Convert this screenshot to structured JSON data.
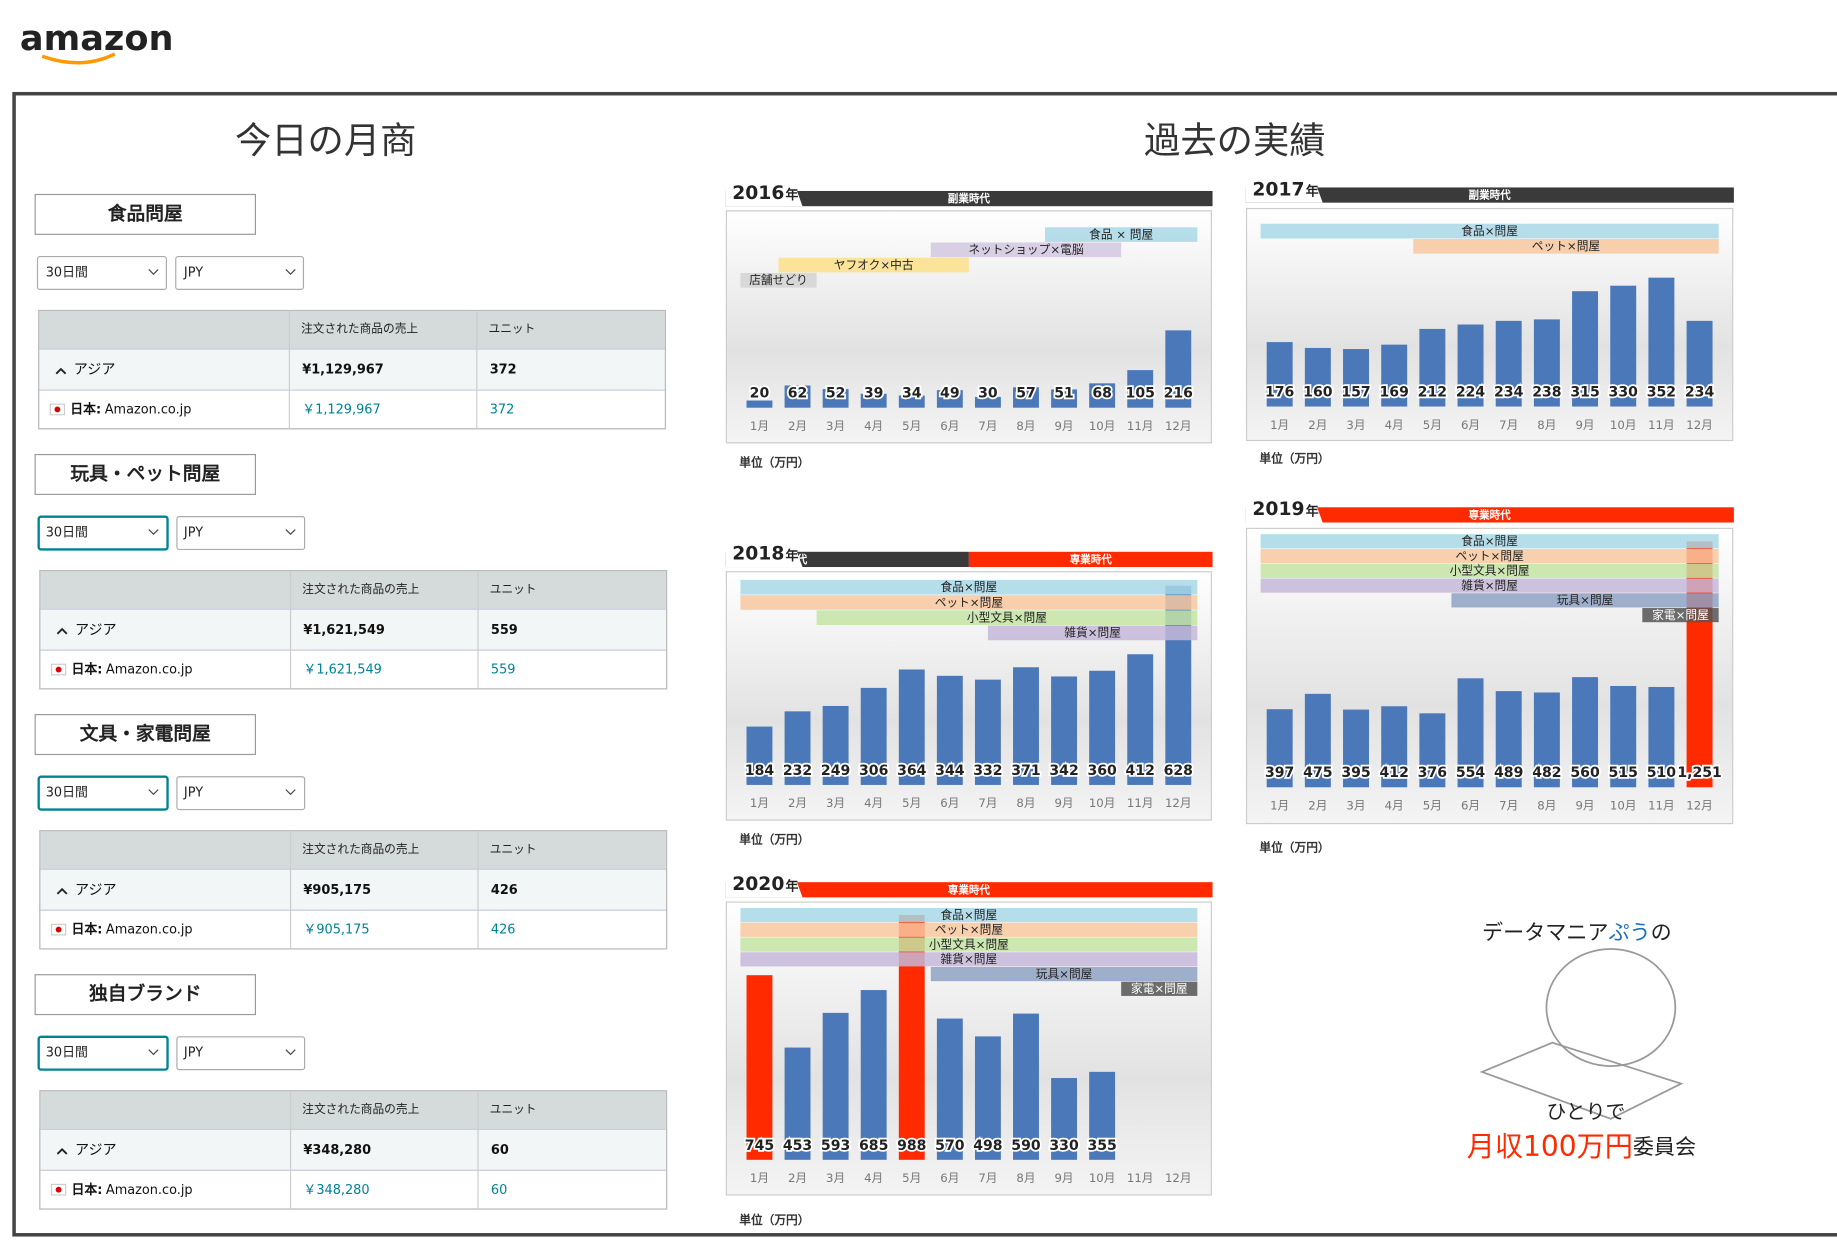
{
  "header": {
    "logo": "amazon"
  },
  "today": {
    "title": "今日の月商",
    "sections": [
      {
        "name": "食品問屋",
        "period": "30日間",
        "currency": "JPY",
        "columns": [
          "注文された商品の売上",
          "ユニット"
        ],
        "region": "アジア",
        "region_sales": "¥1,129,967",
        "region_units": 372,
        "country": "日本:",
        "store": "Amazon.co.jp",
        "country_sales": "￥1,129,967",
        "country_units": 372
      },
      {
        "name": "玩具・ペット問屋",
        "period": "30日間",
        "currency": "JPY",
        "columns": [
          "注文された商品の売上",
          "ユニット"
        ],
        "region": "アジア",
        "region_sales": "¥1,621,549",
        "region_units": 559,
        "country": "日本:",
        "store": "Amazon.co.jp",
        "country_sales": "￥1,621,549",
        "country_units": 559
      },
      {
        "name": "文具・家電問屋",
        "period": "30日間",
        "currency": "JPY",
        "columns": [
          "注文された商品の売上",
          "ユニット"
        ],
        "region": "アジア",
        "region_sales": "¥905,175",
        "region_units": 426,
        "country": "日本:",
        "store": "Amazon.co.jp",
        "country_sales": "￥905,175",
        "country_units": 426
      },
      {
        "name": "独自ブランド",
        "period": "30日間",
        "currency": "JPY",
        "columns": [
          "注文された商品の売上",
          "ユニット"
        ],
        "region": "アジア",
        "region_sales": "¥348,280",
        "region_units": 60,
        "country": "日本:",
        "store": "Amazon.co.jp",
        "country_sales": "￥348,280",
        "country_units": 60
      }
    ]
  },
  "history_title": "過去の実績",
  "chart_data": [
    {
      "type": "bar",
      "title": "2016",
      "title_suffix": "年",
      "eras": [
        {
          "text": "副業時代",
          "color": "#3a3a3a"
        }
      ],
      "categories": [
        "1月",
        "2月",
        "3月",
        "4月",
        "5月",
        "6月",
        "7月",
        "8月",
        "9月",
        "10月",
        "11月",
        "12月"
      ],
      "values": [
        20,
        62,
        52,
        39,
        34,
        49,
        30,
        57,
        51,
        68,
        105,
        216
      ],
      "colors": [
        "#4a78b8",
        "#4a78b8",
        "#4a78b8",
        "#4a78b8",
        "#4a78b8",
        "#4a78b8",
        "#4a78b8",
        "#4a78b8",
        "#4a78b8",
        "#4a78b8",
        "#4a78b8",
        "#4a78b8"
      ],
      "annotations": [
        {
          "text": "食品 × 問屋",
          "color": "#a8d8e6",
          "start": 9,
          "end": 12
        },
        {
          "text": "ネットショップ×電脳",
          "color": "#d2c8e0",
          "start": 6,
          "end": 10
        },
        {
          "text": "ヤフオク×中古",
          "color": "#fbe08a",
          "start": 2,
          "end": 6
        },
        {
          "text": "店舗せどり",
          "color": "#d4d4d4",
          "start": 1,
          "end": 2
        }
      ],
      "unit": "単位（万円）"
    },
    {
      "type": "bar",
      "title": "2017",
      "title_suffix": "年",
      "eras": [
        {
          "text": "副業時代",
          "color": "#3a3a3a"
        }
      ],
      "categories": [
        "1月",
        "2月",
        "3月",
        "4月",
        "5月",
        "6月",
        "7月",
        "8月",
        "9月",
        "10月",
        "11月",
        "12月"
      ],
      "values": [
        176,
        160,
        157,
        169,
        212,
        224,
        234,
        238,
        315,
        330,
        352,
        234
      ],
      "colors": [
        "#4a78b8",
        "#4a78b8",
        "#4a78b8",
        "#4a78b8",
        "#4a78b8",
        "#4a78b8",
        "#4a78b8",
        "#4a78b8",
        "#4a78b8",
        "#4a78b8",
        "#4a78b8",
        "#4a78b8"
      ],
      "annotations": [
        {
          "text": "食品×問屋",
          "color": "#a8d8e6",
          "start": 1,
          "end": 12
        },
        {
          "text": "ペット×問屋",
          "color": "#f8c8a0",
          "start": 5,
          "end": 12
        }
      ],
      "unit": "単位（万円）"
    },
    {
      "type": "bar",
      "title": "2018",
      "title_suffix": "年",
      "eras": [
        {
          "text": "副業時代",
          "color": "#3a3a3a"
        },
        {
          "text": "専業時代",
          "color": "#ff2a00"
        }
      ],
      "categories": [
        "1月",
        "2月",
        "3月",
        "4月",
        "5月",
        "6月",
        "7月",
        "8月",
        "9月",
        "10月",
        "11月",
        "12月"
      ],
      "values": [
        184,
        232,
        249,
        306,
        364,
        344,
        332,
        371,
        342,
        360,
        412,
        628
      ],
      "colors": [
        "#4a78b8",
        "#4a78b8",
        "#4a78b8",
        "#4a78b8",
        "#4a78b8",
        "#4a78b8",
        "#4a78b8",
        "#4a78b8",
        "#4a78b8",
        "#4a78b8",
        "#4a78b8",
        "#4a78b8"
      ],
      "annotations": [
        {
          "text": "食品×問屋",
          "color": "#a8d8e6",
          "start": 1,
          "end": 12
        },
        {
          "text": "ペット×問屋",
          "color": "#f8c8a0",
          "start": 1,
          "end": 12
        },
        {
          "text": "小型文具×問屋",
          "color": "#c5e4a5",
          "start": 3,
          "end": 12
        },
        {
          "text": "雑貨×問屋",
          "color": "#c6b8d8",
          "start": 7.5,
          "end": 12
        }
      ],
      "unit": "単位（万円）"
    },
    {
      "type": "bar",
      "title": "2019",
      "title_suffix": "年",
      "eras": [
        {
          "text": "専業時代",
          "color": "#ff2a00"
        }
      ],
      "categories": [
        "1月",
        "2月",
        "3月",
        "4月",
        "5月",
        "6月",
        "7月",
        "8月",
        "9月",
        "10月",
        "11月",
        "12月"
      ],
      "values": [
        397,
        475,
        395,
        412,
        376,
        554,
        489,
        482,
        560,
        515,
        510,
        1251
      ],
      "value_labels": [
        "397",
        "475",
        "395",
        "412",
        "376",
        "554",
        "489",
        "482",
        "560",
        "515",
        "510",
        "1,251"
      ],
      "colors": [
        "#4a78b8",
        "#4a78b8",
        "#4a78b8",
        "#4a78b8",
        "#4a78b8",
        "#4a78b8",
        "#4a78b8",
        "#4a78b8",
        "#4a78b8",
        "#4a78b8",
        "#4a78b8",
        "#ff2a00"
      ],
      "annotations": [
        {
          "text": "食品×問屋",
          "color": "#a8d8e6",
          "start": 1,
          "end": 12
        },
        {
          "text": "ペット×問屋",
          "color": "#f8c8a0",
          "start": 1,
          "end": 12
        },
        {
          "text": "小型文具×問屋",
          "color": "#c5e4a5",
          "start": 1,
          "end": 12
        },
        {
          "text": "雑貨×問屋",
          "color": "#c6b8d8",
          "start": 1,
          "end": 12
        },
        {
          "text": "玩具×問屋",
          "color": "#8ea2c4",
          "start": 6,
          "end": 12
        },
        {
          "text": "家電×問屋",
          "color": "#555555",
          "start": 11,
          "end": 12
        }
      ],
      "unit": "単位（万円）"
    },
    {
      "type": "bar",
      "title": "2020",
      "title_suffix": "年",
      "eras": [
        {
          "text": "専業時代",
          "color": "#ff2a00"
        }
      ],
      "categories": [
        "1月",
        "2月",
        "3月",
        "4月",
        "5月",
        "6月",
        "7月",
        "8月",
        "9月",
        "10月",
        "11月",
        "12月"
      ],
      "values": [
        745,
        453,
        593,
        685,
        988,
        570,
        498,
        590,
        330,
        355,
        null,
        null
      ],
      "colors": [
        "#ff2a00",
        "#4a78b8",
        "#4a78b8",
        "#4a78b8",
        "#ff2a00",
        "#4a78b8",
        "#4a78b8",
        "#4a78b8",
        "#4a78b8",
        "#4a78b8",
        "#4a78b8",
        "#4a78b8"
      ],
      "annotations": [
        {
          "text": "食品×問屋",
          "color": "#a8d8e6",
          "start": 1,
          "end": 12
        },
        {
          "text": "ペット×問屋",
          "color": "#f8c8a0",
          "start": 1,
          "end": 12
        },
        {
          "text": "小型文具×問屋",
          "color": "#c5e4a5",
          "start": 1,
          "end": 12
        },
        {
          "text": "雑貨×問屋",
          "color": "#c6b8d8",
          "start": 1,
          "end": 12
        },
        {
          "text": "玩具×問屋",
          "color": "#8ea2c4",
          "start": 6,
          "end": 12
        },
        {
          "text": "家電×問屋",
          "color": "#555555",
          "start": 11,
          "end": 12
        }
      ],
      "unit": "単位（万円）"
    }
  ],
  "branding": {
    "line1a": "データマニア",
    "line1b": "ぷう",
    "line1c": "の",
    "line2": "ひとりで",
    "line3a": "月収100万円",
    "line3b": "委員会"
  }
}
